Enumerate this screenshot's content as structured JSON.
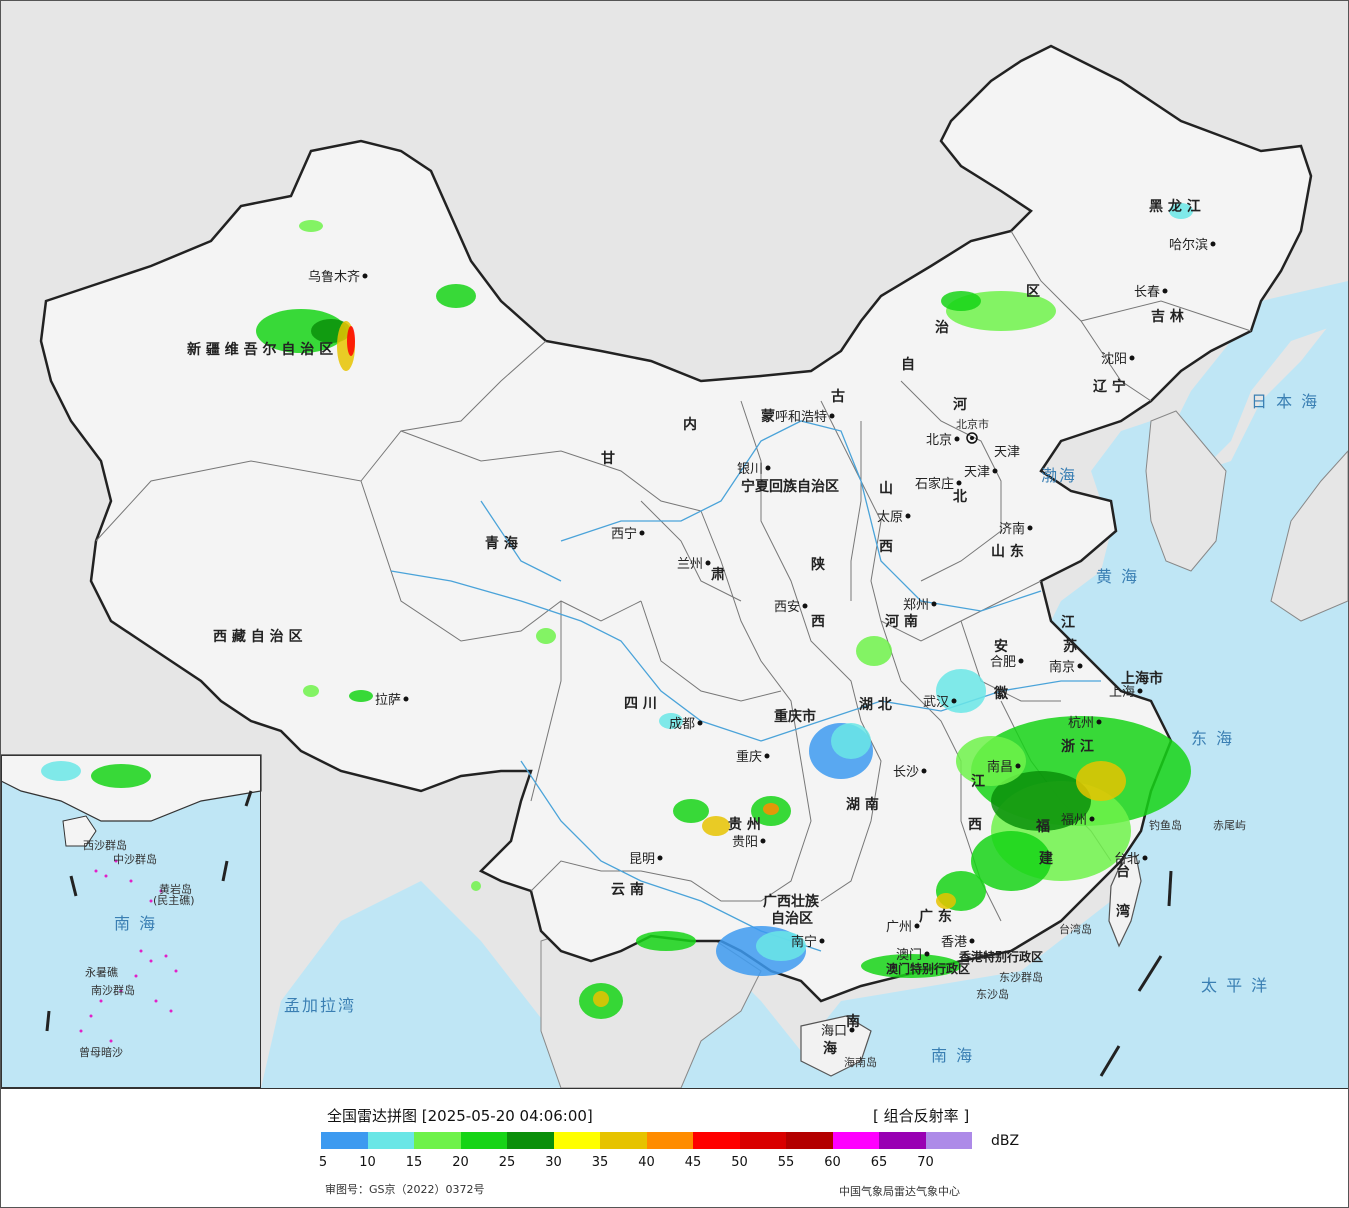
{
  "legend": {
    "title": "全国雷达拼图 [2025-05-20 04:06:00]",
    "product": "[ 组合反射率 ]",
    "unit": "dBZ",
    "ticks": [
      "5",
      "10",
      "15",
      "20",
      "25",
      "30",
      "35",
      "40",
      "45",
      "50",
      "55",
      "60",
      "65",
      "70"
    ],
    "colors": [
      "#3d9af0",
      "#6ae6e6",
      "#6ef24a",
      "#16d416",
      "#0a8f0a",
      "#ffff00",
      "#e6c300",
      "#ff8c00",
      "#ff0000",
      "#d90000",
      "#b30000",
      "#ff00ff",
      "#9900b3",
      "#ad8ae8"
    ],
    "approval": "审图号：GS京（2022）0372号",
    "producer": "中国气象局雷达气象中心"
  },
  "map": {
    "provinces": [
      {
        "id": "heilongjiang",
        "text": "黑 龙 江"
      },
      {
        "id": "jilin",
        "text": "吉 林"
      },
      {
        "id": "liaoning",
        "text": "辽 宁"
      },
      {
        "id": "neimenggu1",
        "text": "内"
      },
      {
        "id": "neimenggu2",
        "text": "蒙"
      },
      {
        "id": "neimenggu3",
        "text": "古"
      },
      {
        "id": "neimenggu4",
        "text": "自"
      },
      {
        "id": "neimenggu5",
        "text": "治"
      },
      {
        "id": "neimenggu6",
        "text": "区"
      },
      {
        "id": "xinjiang",
        "text": "新 疆 维 吾 尔 自 治 区"
      },
      {
        "id": "xizang",
        "text": "西 藏 自 治 区"
      },
      {
        "id": "qinghai",
        "text": "青        海"
      },
      {
        "id": "gansu",
        "text": "甘"
      },
      {
        "id": "gansu2",
        "text": "肃"
      },
      {
        "id": "ningxia",
        "text": "宁夏回族自治区"
      },
      {
        "id": "shaanxi1",
        "text": "陕"
      },
      {
        "id": "shaanxi2",
        "text": "西"
      },
      {
        "id": "shanxi1",
        "text": "山"
      },
      {
        "id": "shanxi2",
        "text": "西"
      },
      {
        "id": "hebei1",
        "text": "河"
      },
      {
        "id": "hebei2",
        "text": "北"
      },
      {
        "id": "shandong",
        "text": "山 东"
      },
      {
        "id": "henan",
        "text": "河 南"
      },
      {
        "id": "jiangsu1",
        "text": "江"
      },
      {
        "id": "jiangsu2",
        "text": "苏"
      },
      {
        "id": "anhui1",
        "text": "安"
      },
      {
        "id": "anhui2",
        "text": "徽"
      },
      {
        "id": "hubei",
        "text": "湖 北"
      },
      {
        "id": "sichuan",
        "text": "四    川"
      },
      {
        "id": "chongqing",
        "text": "重庆市"
      },
      {
        "id": "guizhou",
        "text": "贵   州"
      },
      {
        "id": "yunnan",
        "text": "云 南"
      },
      {
        "id": "hunan",
        "text": "湖 南"
      },
      {
        "id": "jiangxi1",
        "text": "江"
      },
      {
        "id": "jiangxi2",
        "text": "西"
      },
      {
        "id": "zhejiang",
        "text": "浙 江"
      },
      {
        "id": "fujian1",
        "text": "福"
      },
      {
        "id": "fujian2",
        "text": "建"
      },
      {
        "id": "guangxi1",
        "text": "广西壮族"
      },
      {
        "id": "guangxi2",
        "text": "自治区"
      },
      {
        "id": "guangdong",
        "text": "广 东"
      },
      {
        "id": "hainan1",
        "text": "海"
      },
      {
        "id": "hainan2",
        "text": "南"
      },
      {
        "id": "shanghai",
        "text": "上海市"
      },
      {
        "id": "taiwan1",
        "text": "台"
      },
      {
        "id": "taiwan2",
        "text": "湾"
      },
      {
        "id": "hk",
        "text": "香港特别行政区"
      },
      {
        "id": "macau",
        "text": "澳门特别行政区"
      },
      {
        "id": "tianjin",
        "text": "天津"
      },
      {
        "id": "beijing",
        "text": "北京市"
      }
    ],
    "cities": [
      {
        "id": "urumqi",
        "text": "乌鲁木齐"
      },
      {
        "id": "lhasa",
        "text": "拉萨"
      },
      {
        "id": "xining",
        "text": "西宁"
      },
      {
        "id": "lanzhou",
        "text": "兰州"
      },
      {
        "id": "yinchuan",
        "text": "银川"
      },
      {
        "id": "hohhot",
        "text": "呼和浩特"
      },
      {
        "id": "beijingcap",
        "text": "北京"
      },
      {
        "id": "tianjincity",
        "text": "天津"
      },
      {
        "id": "shijiazhuang",
        "text": "石家庄"
      },
      {
        "id": "taiyuan",
        "text": "太原"
      },
      {
        "id": "jinan",
        "text": "济南"
      },
      {
        "id": "zhengzhou",
        "text": "郑州"
      },
      {
        "id": "xian",
        "text": "西安"
      },
      {
        "id": "hefei",
        "text": "合肥"
      },
      {
        "id": "nanjing",
        "text": "南京"
      },
      {
        "id": "shanghaicity",
        "text": "上海"
      },
      {
        "id": "hangzhou",
        "text": "杭州"
      },
      {
        "id": "wuhan",
        "text": "武汉"
      },
      {
        "id": "chengdu",
        "text": "成都"
      },
      {
        "id": "chongqingcity",
        "text": "重庆"
      },
      {
        "id": "changsha",
        "text": "长沙"
      },
      {
        "id": "nanchang",
        "text": "南昌"
      },
      {
        "id": "fuzhou",
        "text": "福州"
      },
      {
        "id": "guiyang",
        "text": "贵阳"
      },
      {
        "id": "kunming",
        "text": "昆明"
      },
      {
        "id": "nanning",
        "text": "南宁"
      },
      {
        "id": "guangzhou",
        "text": "广州"
      },
      {
        "id": "hongkong",
        "text": "香港"
      },
      {
        "id": "macaucity",
        "text": "澳门"
      },
      {
        "id": "haikou",
        "text": "海口"
      },
      {
        "id": "taibei",
        "text": "台北"
      },
      {
        "id": "shenyang",
        "text": "沈阳"
      },
      {
        "id": "changchun",
        "text": "长春"
      },
      {
        "id": "harbin",
        "text": "哈尔滨"
      }
    ],
    "seas": [
      {
        "id": "bohai",
        "text": "渤海"
      },
      {
        "id": "huanghai",
        "text": "黄 海"
      },
      {
        "id": "donghai",
        "text": "东 海"
      },
      {
        "id": "nanhai",
        "text": "南     海"
      },
      {
        "id": "taipingyang",
        "text": "太 平 洋"
      },
      {
        "id": "ribenhai",
        "text": "日 本 海"
      },
      {
        "id": "mengjiala",
        "text": "孟加拉湾"
      },
      {
        "id": "nanhai_inset",
        "text": "南  海"
      }
    ],
    "islands": [
      {
        "id": "diaoyu",
        "text": "钓鱼岛"
      },
      {
        "id": "chiwei",
        "text": "赤尾屿"
      },
      {
        "id": "taiwandao",
        "text": "台湾岛"
      },
      {
        "id": "dongsha",
        "text": "东沙群岛"
      },
      {
        "id": "dongshadao",
        "text": "东沙岛"
      },
      {
        "id": "hainandao",
        "text": "海南岛"
      },
      {
        "id": "xisha",
        "text": "西沙群岛"
      },
      {
        "id": "zhongsha",
        "text": "中沙群岛"
      },
      {
        "id": "huangyan",
        "text": "黄岩岛"
      },
      {
        "id": "minzhu",
        "text": "(民主礁)"
      },
      {
        "id": "nansha",
        "text": "南沙群岛"
      },
      {
        "id": "yongshu",
        "text": "永暑礁"
      },
      {
        "id": "zengmu",
        "text": "曾母暗沙"
      }
    ]
  }
}
